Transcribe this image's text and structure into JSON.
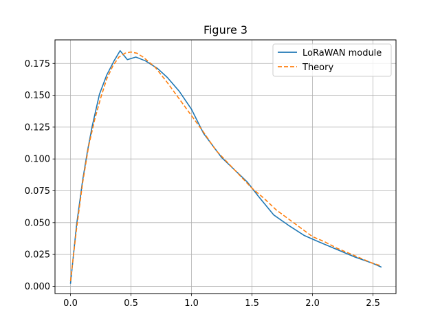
{
  "chart_data": {
    "type": "line",
    "title": "Figure 3",
    "xlabel": "",
    "ylabel": "",
    "xlim": [
      -0.128,
      2.69
    ],
    "ylim": [
      -0.0057,
      0.1935
    ],
    "xticks": [
      0.0,
      0.5,
      1.0,
      1.5,
      2.0,
      2.5
    ],
    "xtick_labels": [
      "0.0",
      "0.5",
      "1.0",
      "1.5",
      "2.0",
      "2.5"
    ],
    "yticks": [
      0.0,
      0.025,
      0.05,
      0.075,
      0.1,
      0.125,
      0.15,
      0.175
    ],
    "ytick_labels": [
      "0.000",
      "0.025",
      "0.050",
      "0.075",
      "0.100",
      "0.125",
      "0.150",
      "0.175"
    ],
    "grid": true,
    "legend_position": "top-right",
    "series": [
      {
        "name": "LoRaWAN module",
        "color": "#1f77b4",
        "style": "solid",
        "x": [
          0.0,
          0.05,
          0.1,
          0.14,
          0.18,
          0.24,
          0.3,
          0.36,
          0.41,
          0.47,
          0.54,
          0.62,
          0.72,
          0.8,
          0.9,
          1.0,
          1.1,
          1.25,
          1.35,
          1.46,
          1.55,
          1.68,
          1.8,
          1.93,
          2.05,
          2.2,
          2.35,
          2.5,
          2.57
        ],
        "y": [
          0.002,
          0.048,
          0.083,
          0.106,
          0.126,
          0.151,
          0.166,
          0.177,
          0.185,
          0.178,
          0.18,
          0.177,
          0.171,
          0.164,
          0.153,
          0.139,
          0.12,
          0.101,
          0.092,
          0.082,
          0.071,
          0.056,
          0.048,
          0.04,
          0.035,
          0.029,
          0.023,
          0.018,
          0.015
        ]
      },
      {
        "name": "Theory",
        "color": "#ff7f0e",
        "style": "dashed",
        "x": [
          0.0,
          0.05,
          0.1,
          0.15,
          0.2,
          0.25,
          0.3,
          0.35,
          0.4,
          0.45,
          0.5,
          0.55,
          0.6,
          0.7,
          0.8,
          0.9,
          1.0,
          1.1,
          1.2,
          1.3,
          1.4,
          1.5,
          1.6,
          1.7,
          1.8,
          1.9,
          2.0,
          2.1,
          2.2,
          2.3,
          2.4,
          2.5,
          2.57
        ],
        "y": [
          0.004,
          0.045,
          0.081,
          0.11,
          0.131,
          0.148,
          0.163,
          0.173,
          0.18,
          0.183,
          0.184,
          0.183,
          0.18,
          0.172,
          0.16,
          0.147,
          0.134,
          0.121,
          0.107,
          0.097,
          0.087,
          0.077,
          0.069,
          0.06,
          0.053,
          0.046,
          0.039,
          0.035,
          0.03,
          0.026,
          0.022,
          0.018,
          0.016
        ]
      }
    ]
  }
}
